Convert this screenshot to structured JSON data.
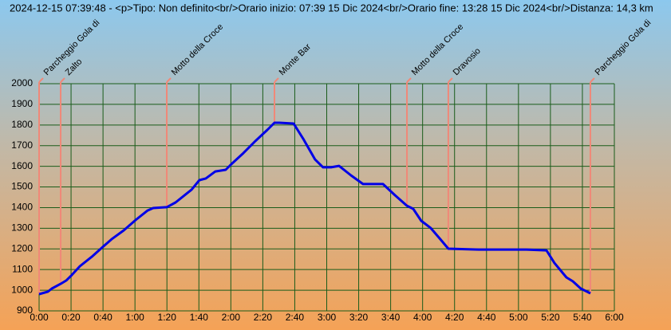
{
  "chart_data": {
    "type": "line",
    "title": "2024-12-15 07:39:48 - <p>Tipo: Non definito<br/>Orario inizio: 07:39 15 Dic 2024<br/>Orario fine: 13:28 15 Dic 2024<br/>Distanza: 14,3 km",
    "xlim": [
      0,
      360
    ],
    "xticks": [
      {
        "value": 0,
        "label": "0:00"
      },
      {
        "value": 20,
        "label": "0:20"
      },
      {
        "value": 40,
        "label": "0:40"
      },
      {
        "value": 60,
        "label": "1:00"
      },
      {
        "value": 80,
        "label": "1:20"
      },
      {
        "value": 100,
        "label": "1:40"
      },
      {
        "value": 120,
        "label": "2:00"
      },
      {
        "value": 140,
        "label": "2:20"
      },
      {
        "value": 160,
        "label": "2:40"
      },
      {
        "value": 180,
        "label": "3:00"
      },
      {
        "value": 200,
        "label": "3:20"
      },
      {
        "value": 220,
        "label": "3:40"
      },
      {
        "value": 240,
        "label": "4:00"
      },
      {
        "value": 260,
        "label": "4:20"
      },
      {
        "value": 280,
        "label": "4:40"
      },
      {
        "value": 300,
        "label": "5:00"
      },
      {
        "value": 320,
        "label": "5:20"
      },
      {
        "value": 340,
        "label": "5:40"
      },
      {
        "value": 360,
        "label": "6:00"
      }
    ],
    "ylim": [
      900,
      2000
    ],
    "yticks": [
      900,
      1000,
      1100,
      1200,
      1300,
      1400,
      1500,
      1600,
      1700,
      1800,
      1900,
      2000
    ],
    "grid": true,
    "grid_color": "#1a5c1a",
    "series": [
      {
        "color": "#0000e6",
        "x": [
          0,
          5.5,
          8,
          13.5,
          17,
          20.5,
          25.5,
          33,
          38,
          45.4,
          53,
          60.4,
          67.9,
          71.4,
          79.9,
          85.4,
          95.4,
          100.3,
          104.3,
          110.3,
          116.8,
          120.3,
          127.8,
          135.3,
          142.8,
          147.3,
          150.3,
          159.3,
          165.2,
          172.7,
          177.7,
          182.7,
          187.7,
          195.2,
          202.7,
          215.2,
          222.7,
          230.2,
          234.1,
          239.1,
          245.1,
          251.1,
          256.1,
          275.1,
          305,
          317.5,
          322.5,
          330,
          334,
          339,
          345
        ],
        "values": [
          981,
          993,
          1008,
          1031,
          1047,
          1074,
          1116,
          1162,
          1197,
          1247,
          1290,
          1340,
          1386,
          1398,
          1402,
          1425,
          1487,
          1533,
          1541,
          1575,
          1583,
          1610,
          1664,
          1722,
          1776,
          1811,
          1811,
          1807,
          1734,
          1633,
          1595,
          1595,
          1602,
          1556,
          1514,
          1514,
          1460,
          1409,
          1394,
          1336,
          1301,
          1247,
          1201,
          1197,
          1197,
          1193,
          1132,
          1062,
          1043,
          1008,
          985
        ]
      }
    ],
    "marker_color": "#f08878",
    "markers": [
      {
        "label": "Parcheggio Gola di",
        "x": 0,
        "y": 981
      },
      {
        "label": "Zalto",
        "x": 13.5,
        "y": 1031
      },
      {
        "label": "Motto della Croce",
        "x": 79.9,
        "y": 1402
      },
      {
        "label": "Monte Bar",
        "x": 147.3,
        "y": 1811
      },
      {
        "label": "Motto della Croce",
        "x": 230.2,
        "y": 1409
      },
      {
        "label": "Dravosio",
        "x": 256.1,
        "y": 1201
      },
      {
        "label": "Parcheggio Gola di",
        "x": 345,
        "y": 985
      }
    ]
  }
}
